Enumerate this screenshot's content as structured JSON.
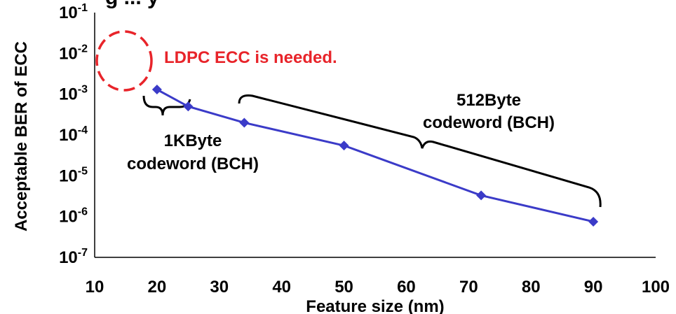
{
  "title_fragment": "g  ...  y",
  "chart_data": {
    "type": "line",
    "title": "",
    "xlabel": "Feature size (nm)",
    "ylabel": "Acceptable BER of ECC",
    "xlim": [
      10,
      100
    ],
    "ylim_exponent": [
      -7,
      -1
    ],
    "y_scale": "log",
    "x_ticks": [
      10,
      20,
      30,
      40,
      50,
      60,
      70,
      80,
      90,
      100
    ],
    "y_ticks": [
      -7,
      -6,
      -5,
      -4,
      -3,
      -2,
      -1
    ],
    "x": [
      20,
      25,
      34,
      50,
      72,
      90
    ],
    "y": [
      0.0013,
      0.0005,
      0.0002,
      5.5e-05,
      3.3e-06,
      7.5e-07
    ],
    "series_color": "#3b3bc8",
    "grid": false,
    "annotations": {
      "ldpc": "LDPC ECC is needed.",
      "kb_line1": "1KByte",
      "kb_line2": "codeword (BCH)",
      "b512_line1": "512Byte",
      "b512_line2": "codeword (BCH)"
    },
    "annotation_color": "#e8242a"
  }
}
